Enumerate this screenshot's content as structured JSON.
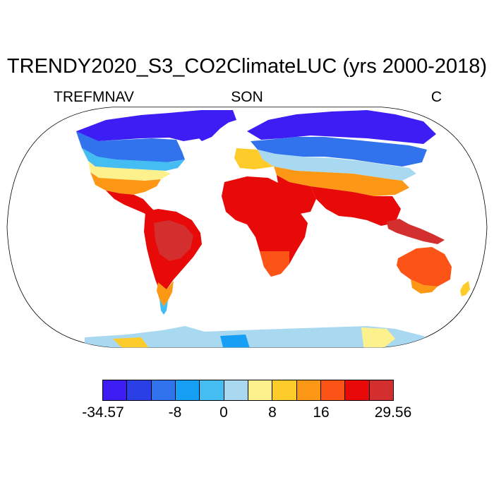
{
  "title": "TRENDY2020_S3_CO2ClimateLUC (yrs 2000-2018)",
  "variable": "TREFMNAV",
  "season": "SON",
  "units": "C",
  "projection": "Robinson",
  "colorbar": {
    "colors": [
      "#3c1ef5",
      "#2a3fe6",
      "#3173ec",
      "#179ff5",
      "#44bdf3",
      "#a9d9f0",
      "#fdf18d",
      "#fdcc2a",
      "#fc9815",
      "#fc5316",
      "#e80a08",
      "#d42f2f"
    ],
    "tick_labels": [
      "-34.57",
      "-8",
      "0",
      "8",
      "16",
      "29.56"
    ]
  }
}
